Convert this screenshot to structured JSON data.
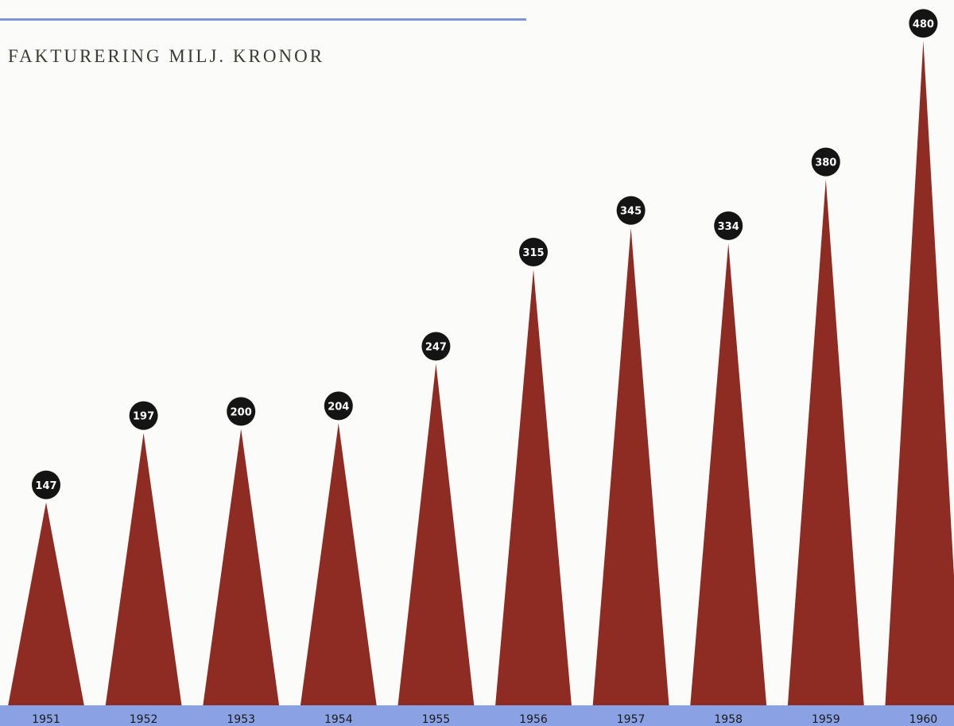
{
  "chart_data": {
    "type": "bar",
    "title": "FAKTURERING MILJ. KRONOR",
    "categories": [
      "1951",
      "1952",
      "1953",
      "1954",
      "1955",
      "1956",
      "1957",
      "1958",
      "1959",
      "1960"
    ],
    "values": [
      147,
      197,
      200,
      204,
      247,
      315,
      345,
      334,
      380,
      480
    ],
    "mark": "triangle",
    "colors": {
      "bar": "#8e2b23",
      "label_badge": "#141414",
      "label_text": "#ffffff",
      "axis_band": "#8aa1e3"
    }
  }
}
